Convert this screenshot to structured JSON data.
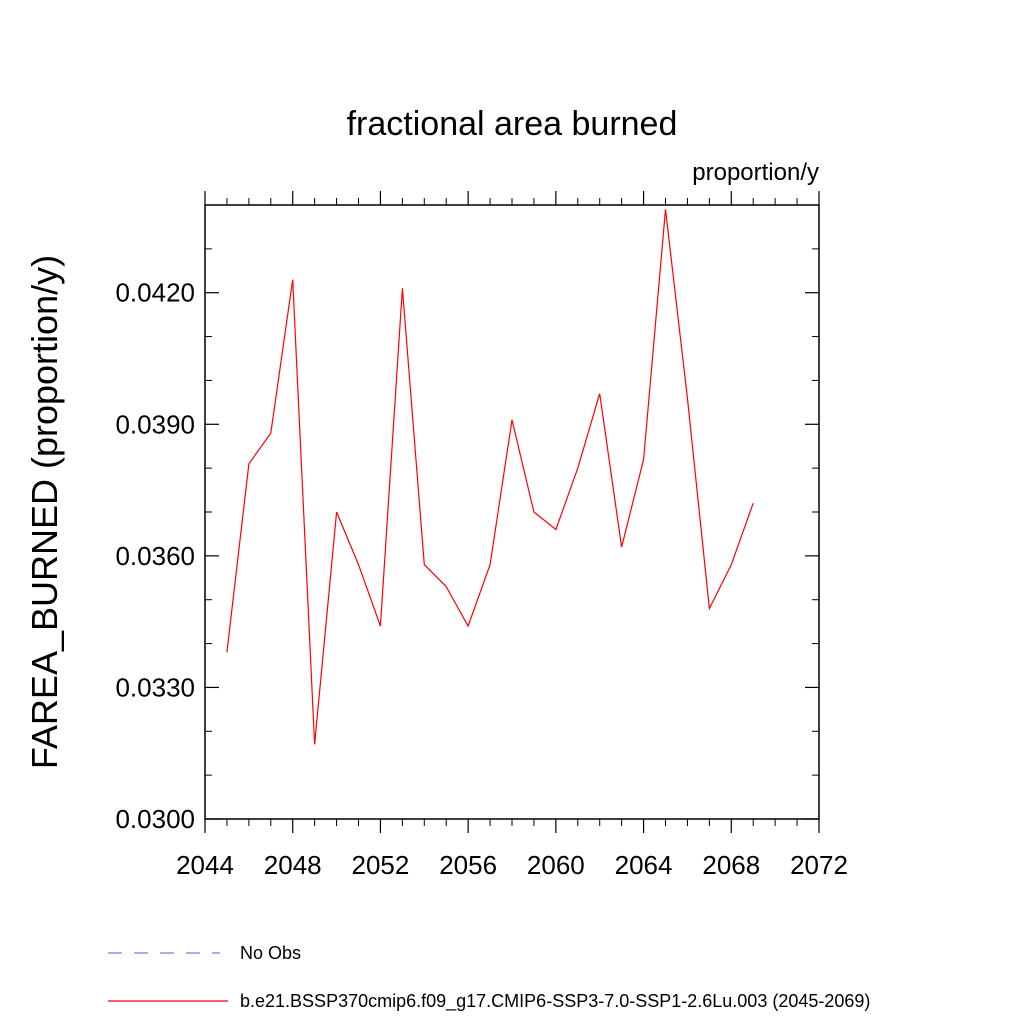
{
  "chart_data": {
    "type": "line",
    "title": "fractional area burned",
    "units": "proportion/y",
    "ylabel": "FAREA_BURNED  (proportion/y)",
    "xlabel": "",
    "xlim": [
      2044,
      2072
    ],
    "ylim": [
      0.03,
      0.044
    ],
    "xticks": [
      2044,
      2048,
      2052,
      2056,
      2060,
      2064,
      2068,
      2072
    ],
    "xtick_labels": [
      "2044",
      "2048",
      "2052",
      "2056",
      "2060",
      "2064",
      "2068",
      "2072"
    ],
    "yticks": [
      0.03,
      0.033,
      0.036,
      0.039,
      0.042
    ],
    "ytick_labels": [
      "0.0300",
      "0.0330",
      "0.0360",
      "0.0390",
      "0.0420"
    ],
    "grid": false,
    "series": [
      {
        "name": "b.e21.BSSP370cmip6.f09_g17.CMIP6-SSP3-7.0-SSP1-2.6Lu.003 (2045-2069)",
        "color": "#ff0000",
        "x": [
          2045,
          2046,
          2047,
          2048,
          2049,
          2050,
          2051,
          2052,
          2053,
          2054,
          2055,
          2056,
          2057,
          2058,
          2059,
          2060,
          2061,
          2062,
          2063,
          2064,
          2065,
          2066,
          2067,
          2068,
          2069
        ],
        "values": [
          0.0338,
          0.0381,
          0.0388,
          0.0423,
          0.0317,
          0.037,
          0.0358,
          0.0344,
          0.0421,
          0.0358,
          0.0353,
          0.0344,
          0.0358,
          0.0391,
          0.037,
          0.0366,
          0.038,
          0.0397,
          0.0362,
          0.0382,
          0.0439,
          0.0396,
          0.0348,
          0.0358,
          0.0372
        ]
      }
    ],
    "legend": [
      {
        "label": "No Obs",
        "style": "dashed",
        "color": "#7b7bd6"
      },
      {
        "label": "b.e21.BSSP370cmip6.f09_g17.CMIP6-SSP3-7.0-SSP1-2.6Lu.003 (2045-2069)",
        "style": "solid",
        "color": "#ff0000"
      }
    ],
    "legend_position": "bottom-left"
  }
}
